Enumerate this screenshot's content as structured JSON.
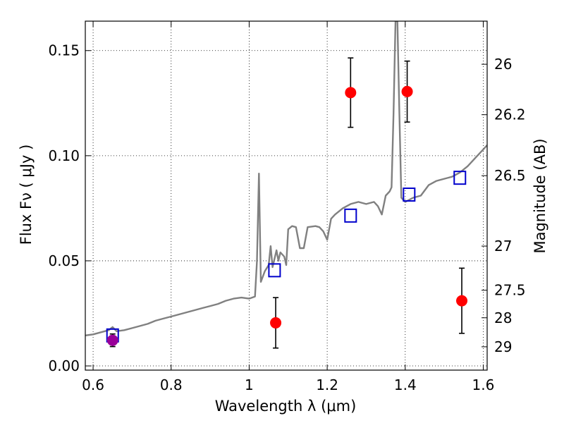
{
  "chart_data": {
    "type": "scatter",
    "xlabel": "Wavelength  λ (μm)",
    "ylabel_left": "Flux  Fν  ( μJy )",
    "ylabel_right": "Magnitude (AB)",
    "xlim": [
      0.58,
      1.61
    ],
    "ylim": [
      -0.002,
      0.164
    ],
    "x_ticks": [
      {
        "value": 0.6,
        "label": "0.6"
      },
      {
        "value": 0.8,
        "label": "0.8"
      },
      {
        "value": 1.0,
        "label": "1"
      },
      {
        "value": 1.2,
        "label": "1.2"
      },
      {
        "value": 1.4,
        "label": "1.4"
      },
      {
        "value": 1.6,
        "label": "1.6"
      }
    ],
    "y_ticks_left": [
      {
        "value": 0.0,
        "label": "0.00"
      },
      {
        "value": 0.05,
        "label": "0.05"
      },
      {
        "value": 0.1,
        "label": "0.10"
      },
      {
        "value": 0.15,
        "label": "0.15"
      }
    ],
    "y_ticks_right": [
      {
        "label": "26",
        "flux": 0.1435
      },
      {
        "label": "26.2",
        "flux": 0.1195
      },
      {
        "label": "26.5",
        "flux": 0.0905
      },
      {
        "label": "27",
        "flux": 0.057
      },
      {
        "label": "27.5",
        "flux": 0.036
      },
      {
        "label": "28",
        "flux": 0.0229
      },
      {
        "label": "29",
        "flux": 0.0091
      }
    ],
    "grid": true,
    "series": [
      {
        "kind": "line",
        "color": "#808080",
        "points": [
          [
            0.58,
            0.0145
          ],
          [
            0.6,
            0.015
          ],
          [
            0.62,
            0.016
          ],
          [
            0.64,
            0.017
          ],
          [
            0.65,
            0.0185
          ],
          [
            0.66,
            0.0165
          ],
          [
            0.68,
            0.017
          ],
          [
            0.7,
            0.018
          ],
          [
            0.72,
            0.019
          ],
          [
            0.74,
            0.02
          ],
          [
            0.76,
            0.0215
          ],
          [
            0.78,
            0.0225
          ],
          [
            0.8,
            0.0235
          ],
          [
            0.82,
            0.0245
          ],
          [
            0.84,
            0.0255
          ],
          [
            0.86,
            0.0265
          ],
          [
            0.88,
            0.0275
          ],
          [
            0.9,
            0.0285
          ],
          [
            0.92,
            0.0295
          ],
          [
            0.94,
            0.031
          ],
          [
            0.96,
            0.032
          ],
          [
            0.98,
            0.0325
          ],
          [
            1.0,
            0.032
          ],
          [
            1.015,
            0.033
          ],
          [
            1.02,
            0.05
          ],
          [
            1.025,
            0.0915
          ],
          [
            1.03,
            0.04
          ],
          [
            1.04,
            0.045
          ],
          [
            1.05,
            0.048
          ],
          [
            1.055,
            0.057
          ],
          [
            1.06,
            0.047
          ],
          [
            1.07,
            0.055
          ],
          [
            1.075,
            0.05
          ],
          [
            1.08,
            0.054
          ],
          [
            1.09,
            0.052
          ],
          [
            1.095,
            0.048
          ],
          [
            1.1,
            0.065
          ],
          [
            1.11,
            0.0665
          ],
          [
            1.12,
            0.066
          ],
          [
            1.13,
            0.056
          ],
          [
            1.14,
            0.056
          ],
          [
            1.15,
            0.066
          ],
          [
            1.17,
            0.0665
          ],
          [
            1.18,
            0.066
          ],
          [
            1.19,
            0.064
          ],
          [
            1.2,
            0.06
          ],
          [
            1.21,
            0.07
          ],
          [
            1.22,
            0.072
          ],
          [
            1.24,
            0.075
          ],
          [
            1.26,
            0.077
          ],
          [
            1.28,
            0.078
          ],
          [
            1.3,
            0.077
          ],
          [
            1.32,
            0.078
          ],
          [
            1.33,
            0.076
          ],
          [
            1.34,
            0.072
          ],
          [
            1.35,
            0.081
          ],
          [
            1.36,
            0.083
          ],
          [
            1.365,
            0.085
          ],
          [
            1.37,
            0.12
          ],
          [
            1.375,
            0.164
          ],
          [
            1.38,
            0.164
          ],
          [
            1.385,
            0.12
          ],
          [
            1.39,
            0.08
          ],
          [
            1.4,
            0.078
          ],
          [
            1.42,
            0.08
          ],
          [
            1.44,
            0.081
          ],
          [
            1.46,
            0.086
          ],
          [
            1.48,
            0.088
          ],
          [
            1.5,
            0.089
          ],
          [
            1.52,
            0.09
          ],
          [
            1.54,
            0.092
          ],
          [
            1.56,
            0.095
          ],
          [
            1.58,
            0.099
          ],
          [
            1.6,
            0.103
          ],
          [
            1.61,
            0.105
          ]
        ]
      },
      {
        "kind": "squares",
        "color": "#0000cc",
        "points": [
          [
            0.65,
            0.0145
          ],
          [
            1.065,
            0.0455
          ],
          [
            1.26,
            0.0715
          ],
          [
            1.41,
            0.0815
          ],
          [
            1.54,
            0.0895
          ]
        ]
      },
      {
        "kind": "points_with_errors",
        "color": "#ff0000",
        "points": [
          {
            "x": 1.068,
            "y": 0.0205,
            "err": 0.012
          },
          {
            "x": 1.26,
            "y": 0.13,
            "err": 0.0165
          },
          {
            "x": 1.405,
            "y": 0.1305,
            "err": 0.0145
          },
          {
            "x": 1.545,
            "y": 0.031,
            "err": 0.0155
          }
        ]
      },
      {
        "kind": "points_with_errors",
        "color": "#990099",
        "points": [
          {
            "x": 0.65,
            "y": 0.0122,
            "err": 0.003
          }
        ]
      }
    ]
  }
}
